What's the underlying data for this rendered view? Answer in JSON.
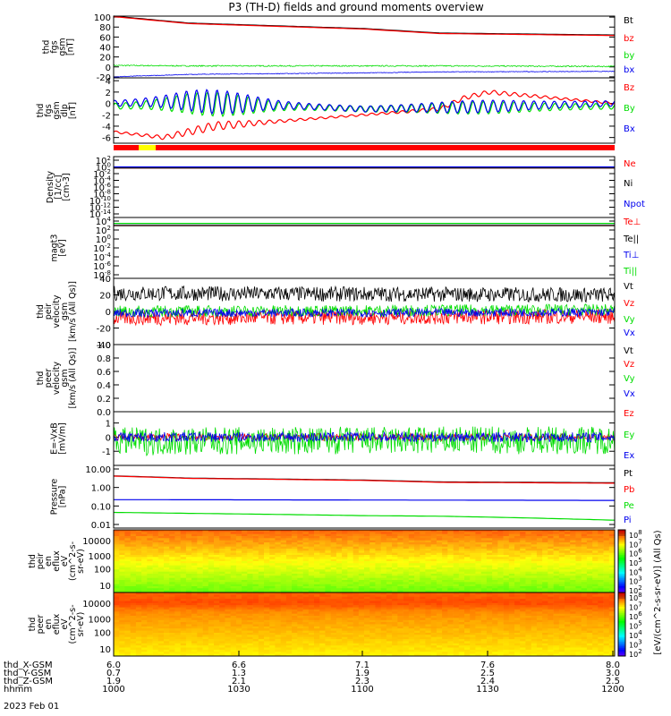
{
  "title": "P3 (TH-D) fields and ground moments overview",
  "colors": {
    "black": "#000000",
    "red": "#ff0000",
    "green": "#00dd00",
    "blue": "#0000ee",
    "yellow": "#ffff00",
    "orange": "#ff8800"
  },
  "chart_data": [
    {
      "type": "line",
      "panel": "fgs",
      "ylabel_lines": [
        "thd",
        "fgs",
        "gsm",
        "[nT]"
      ],
      "yticks": [
        "100",
        "80",
        "60",
        "40",
        "20",
        "0",
        "-20"
      ],
      "ylim": [
        -22,
        102
      ],
      "series": [
        {
          "name": "Bt",
          "color": "black",
          "x": [
            1000,
            1030,
            1100,
            1130,
            1200
          ],
          "values": [
            102,
            88,
            77,
            68,
            64
          ]
        },
        {
          "name": "bz",
          "color": "red",
          "x": [
            1000,
            1030,
            1100,
            1130,
            1200
          ],
          "values": [
            101,
            87,
            76,
            67,
            63
          ]
        },
        {
          "name": "by",
          "color": "green",
          "x": [
            1000,
            1030,
            1100,
            1130,
            1200
          ],
          "values": [
            3,
            2,
            2,
            2,
            1
          ]
        },
        {
          "name": "bx",
          "color": "blue",
          "x": [
            1000,
            1030,
            1100,
            1130,
            1200
          ],
          "values": [
            -20,
            -15,
            -12,
            -10,
            -9
          ]
        }
      ]
    },
    {
      "type": "line",
      "panel": "fgs-dlp",
      "ylabel_lines": [
        "thd",
        "fgs",
        "gsm",
        "dlp",
        "[nT]"
      ],
      "yticks": [
        "4",
        "2",
        "0",
        "-2",
        "-4",
        "-6"
      ],
      "ylim": [
        -7,
        4.5
      ],
      "series": [
        {
          "name": "Bz",
          "color": "red",
          "x": [
            1000,
            1020,
            1040,
            1100,
            1130,
            1140,
            1150,
            1200
          ],
          "values": [
            -5,
            -6,
            -4,
            -2,
            -1,
            1,
            2,
            0
          ]
        },
        {
          "name": "By",
          "color": "green",
          "x": [
            1000,
            1030,
            1100,
            1200
          ],
          "values": [
            -0.5,
            0,
            -1,
            -0.5
          ]
        },
        {
          "name": "Bx",
          "color": "blue",
          "x": [
            1000,
            1030,
            1100,
            1200
          ],
          "values": [
            0,
            0.5,
            -1,
            0
          ]
        }
      ]
    },
    {
      "type": "line",
      "panel": "density",
      "ylabel_lines": [
        "Density",
        "[1/cc]",
        "[cm-3]"
      ],
      "yticks": [
        "10^2",
        "10^0",
        "10^-2",
        "10^-4",
        "10^-6",
        "10^-8",
        "10^-10",
        "10^-12",
        "10^-14"
      ],
      "scale": "log",
      "series": [
        {
          "name": "Ne",
          "color": "red",
          "x": [
            1000,
            1200
          ],
          "values": [
            0.5,
            0.5
          ]
        },
        {
          "name": "Ni",
          "color": "black",
          "x": [
            1000,
            1200
          ],
          "values": [
            0.5,
            0.5
          ]
        },
        {
          "name": "Npot",
          "color": "blue",
          "x": [
            1000,
            1200
          ],
          "values": [
            1,
            1
          ]
        }
      ]
    },
    {
      "type": "line",
      "panel": "temperature",
      "ylabel_lines": [
        "magt3",
        "[eV]"
      ],
      "yticks": [
        "10^4",
        "10^2",
        "10^0",
        "10^-2",
        "10^-4",
        "10^-6",
        "10^-8"
      ],
      "scale": "log",
      "series": [
        {
          "name": "Te⊥",
          "color": "red",
          "x": [
            1000,
            1200
          ],
          "values": [
            1000,
            1000
          ]
        },
        {
          "name": "Te||",
          "color": "black",
          "x": [
            1000,
            1200
          ],
          "values": [
            1000,
            1000
          ]
        },
        {
          "name": "Ti⊥",
          "color": "blue",
          "x": [
            1000,
            1200
          ],
          "values": [
            3000,
            3000
          ]
        },
        {
          "name": "Ti||",
          "color": "green",
          "x": [
            1000,
            1200
          ],
          "values": [
            3000,
            3000
          ]
        }
      ]
    },
    {
      "type": "line",
      "panel": "peir-velocity",
      "ylabel_lines": [
        "thd",
        "peir",
        "velocity",
        "gsm",
        "[km/s (All Qs)]"
      ],
      "yticks": [
        "40",
        "20",
        "0",
        "-20",
        "-40"
      ],
      "ylim": [
        -40,
        40
      ],
      "series": [
        {
          "name": "Vt",
          "color": "black",
          "x": [
            1000,
            1200
          ],
          "values": [
            22,
            20
          ]
        },
        {
          "name": "Vz",
          "color": "red",
          "x": [
            1000,
            1200
          ],
          "values": [
            -8,
            -6
          ]
        },
        {
          "name": "Vy",
          "color": "green",
          "x": [
            1000,
            1200
          ],
          "values": [
            0,
            2
          ]
        },
        {
          "name": "Vx",
          "color": "blue",
          "x": [
            1000,
            1200
          ],
          "values": [
            -2,
            -1
          ]
        }
      ]
    },
    {
      "type": "line",
      "panel": "peer-velocity",
      "ylabel_lines": [
        "thd",
        "peer",
        "velocity",
        "gsm",
        "[km/s (All Qs)]"
      ],
      "yticks": [
        "1.0",
        "0.8",
        "0.6",
        "0.4",
        "0.2",
        "0.0"
      ],
      "ylim": [
        0,
        1
      ],
      "series": [
        {
          "name": "Vt",
          "color": "black",
          "x": [],
          "values": []
        },
        {
          "name": "Vz",
          "color": "red",
          "x": [],
          "values": []
        },
        {
          "name": "Vy",
          "color": "green",
          "x": [],
          "values": []
        },
        {
          "name": "Vx",
          "color": "blue",
          "x": [],
          "values": []
        }
      ]
    },
    {
      "type": "line",
      "panel": "efield",
      "ylabel_lines": [
        "E=-VxB",
        "[mV/m]"
      ],
      "yticks": [
        "1",
        "0",
        "-1"
      ],
      "ylim": [
        -2,
        1.8
      ],
      "series": [
        {
          "name": "Ez",
          "color": "red",
          "x": [
            1000,
            1200
          ],
          "values": [
            0,
            0
          ]
        },
        {
          "name": "Ey",
          "color": "green",
          "x": [
            1000,
            1200
          ],
          "values": [
            -0.3,
            -0.2
          ]
        },
        {
          "name": "Ex",
          "color": "blue",
          "x": [
            1000,
            1200
          ],
          "values": [
            0,
            0
          ]
        }
      ]
    },
    {
      "type": "line",
      "panel": "pressure",
      "ylabel_lines": [
        "Pressure",
        "[nPa]"
      ],
      "yticks": [
        "10.00",
        "1.00",
        "0.10",
        "0.01"
      ],
      "scale": "log",
      "series": [
        {
          "name": "Pt",
          "color": "black",
          "x": [
            1000,
            1030,
            1100,
            1130,
            1200
          ],
          "values": [
            4.2,
            3.2,
            2.5,
            2.0,
            1.8
          ]
        },
        {
          "name": "Pb",
          "color": "red",
          "x": [
            1000,
            1030,
            1100,
            1130,
            1200
          ],
          "values": [
            4.1,
            3.1,
            2.4,
            1.9,
            1.7
          ]
        },
        {
          "name": "Pe",
          "color": "green",
          "x": [
            1000,
            1030,
            1100,
            1130,
            1200
          ],
          "values": [
            0.045,
            0.04,
            0.03,
            0.028,
            0.017
          ]
        },
        {
          "name": "Pi",
          "color": "blue",
          "x": [
            1000,
            1200
          ],
          "values": [
            0.22,
            0.2
          ]
        }
      ]
    },
    {
      "type": "heatmap",
      "panel": "peir-eflux",
      "ylabel_lines": [
        "thd",
        "peir",
        "en",
        "eflux",
        "eV",
        "(cm^2-s-",
        "sr-eV)"
      ],
      "yticks": [
        "10000",
        "1000",
        "100",
        "10"
      ]
    },
    {
      "type": "heatmap",
      "panel": "peer-eflux",
      "ylabel_lines": [
        "thd",
        "peer",
        "en",
        "eflux",
        "eV",
        "(cm^2-s-",
        "sr-eV)"
      ],
      "yticks": [
        "10000",
        "1000",
        "100",
        "10"
      ]
    }
  ],
  "colorbar": {
    "ticks": [
      "10^8",
      "10^7",
      "10^6",
      "10^5",
      "10^4",
      "10^3",
      "10^2"
    ],
    "ticks2": [
      "10^8",
      "10^7",
      "10^6",
      "10^5",
      "10^4",
      "10^3",
      "10^2"
    ],
    "label": "[eV/(cm^2-s-sr-eV)] (All Qs)"
  },
  "xaxis": {
    "rows": [
      {
        "label": "thd_X-GSM",
        "values": [
          "6.0",
          "6.6",
          "7.1",
          "7.6",
          "8.0"
        ]
      },
      {
        "label": "thd_Y-GSM",
        "values": [
          "0.7",
          "1.3",
          "1.9",
          "2.5",
          "3.0"
        ]
      },
      {
        "label": "thd_Z-GSM",
        "values": [
          "1.9",
          "2.1",
          "2.3",
          "2.4",
          "2.5"
        ]
      },
      {
        "label": "hhmm",
        "values": [
          "1000",
          "1030",
          "1100",
          "1130",
          "1200"
        ]
      }
    ],
    "date": "2023 Feb 01"
  }
}
